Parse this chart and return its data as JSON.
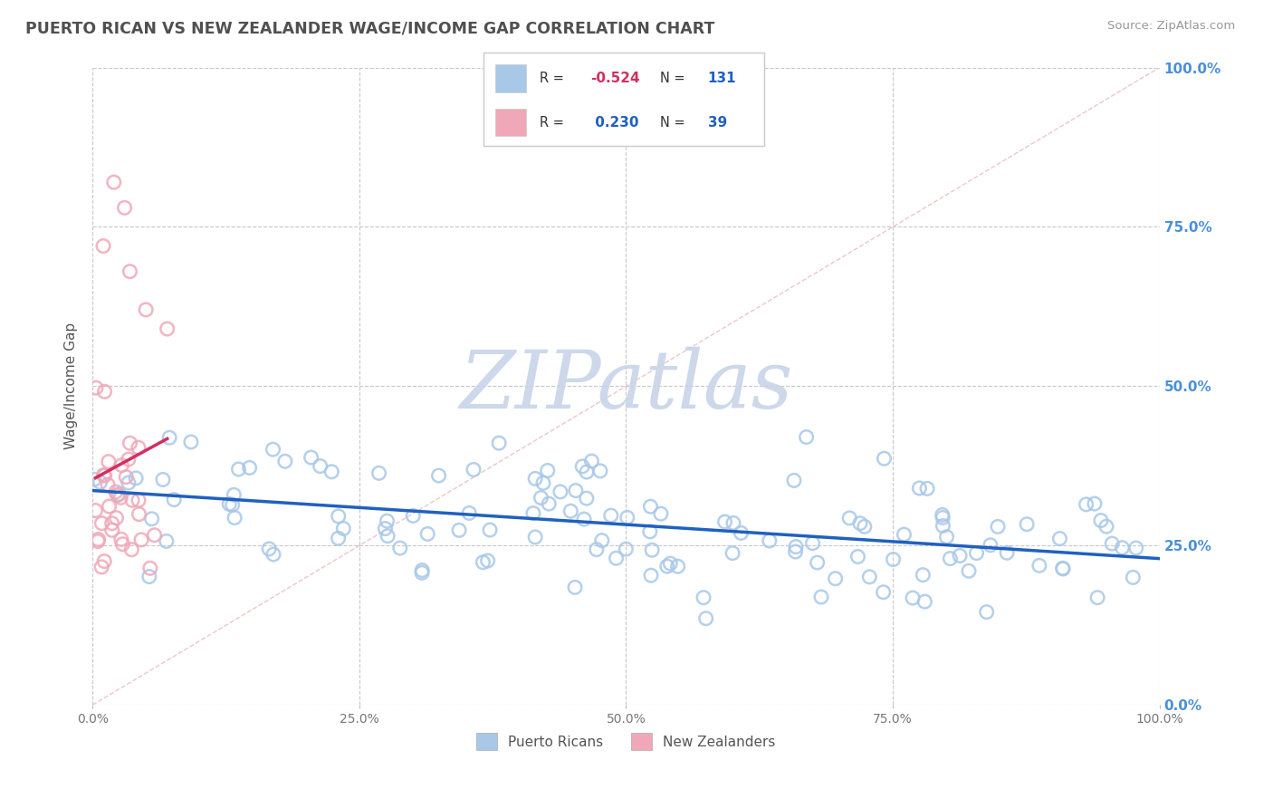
{
  "title": "PUERTO RICAN VS NEW ZEALANDER WAGE/INCOME GAP CORRELATION CHART",
  "source": "Source: ZipAtlas.com",
  "ylabel": "Wage/Income Gap",
  "watermark": "ZIPatlas",
  "xmin": 0.0,
  "xmax": 1.0,
  "ymin": 0.0,
  "ymax": 1.0,
  "blue_R": -0.524,
  "blue_N": 131,
  "pink_R": 0.23,
  "pink_N": 39,
  "blue_color": "#a8c8e8",
  "pink_color": "#f0a8b8",
  "blue_line_color": "#2060c0",
  "pink_line_color": "#d03060",
  "diag_line_color": "#e8b8c0",
  "grid_color": "#c8c8cc",
  "title_color": "#505050",
  "watermark_color": "#c8d4e8",
  "right_tick_color": "#4a90d9",
  "ytick_labels": [
    "0.0%",
    "25.0%",
    "50.0%",
    "75.0%",
    "100.0%"
  ],
  "ytick_values": [
    0.0,
    0.25,
    0.5,
    0.75,
    1.0
  ],
  "xtick_labels": [
    "0.0%",
    "25.0%",
    "50.0%",
    "75.0%",
    "100.0%"
  ],
  "xtick_values": [
    0.0,
    0.25,
    0.5,
    0.75,
    1.0
  ],
  "legend_labels": [
    "Puerto Ricans",
    "New Zealanders"
  ]
}
